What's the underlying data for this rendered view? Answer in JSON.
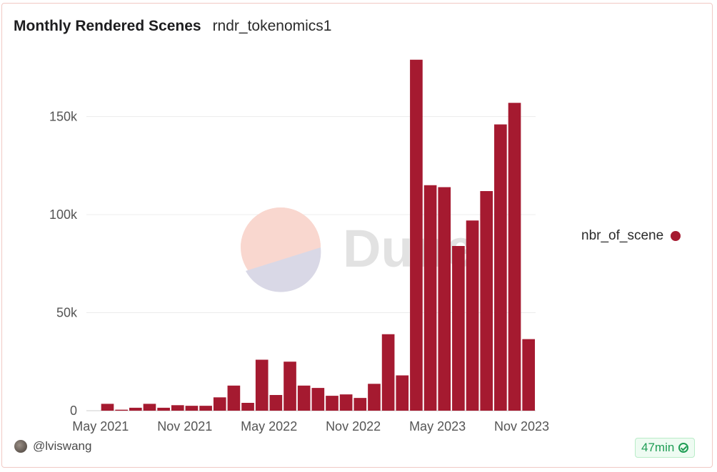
{
  "header": {
    "title": "Monthly Rendered Scenes",
    "subtitle": "rndr_tokenomics1"
  },
  "footer": {
    "username": "@lviswang",
    "refresh_badge": "47min"
  },
  "watermark": {
    "text": "Dune"
  },
  "colors": {
    "bar": "#a51a30",
    "grid": "#ececec",
    "axis_text": "#555555"
  },
  "chart_data": {
    "type": "bar",
    "title": "Monthly Rendered Scenes",
    "x": [
      "2021-05",
      "2021-06",
      "2021-07",
      "2021-08",
      "2021-09",
      "2021-10",
      "2021-11",
      "2021-12",
      "2022-01",
      "2022-02",
      "2022-03",
      "2022-04",
      "2022-05",
      "2022-06",
      "2022-07",
      "2022-08",
      "2022-09",
      "2022-10",
      "2022-11",
      "2022-12",
      "2023-01",
      "2023-02",
      "2023-03",
      "2023-04",
      "2023-05",
      "2023-06",
      "2023-07",
      "2023-08",
      "2023-09",
      "2023-10",
      "2023-11",
      "2023-12"
    ],
    "xticks": [
      "May 2021",
      "Nov 2021",
      "May 2022",
      "Nov 2022",
      "May 2023",
      "Nov 2023"
    ],
    "series": [
      {
        "name": "nbr_of_scene",
        "values": [
          0,
          3500,
          500,
          1500,
          3500,
          1500,
          2800,
          2500,
          2500,
          6800,
          12800,
          4000,
          26000,
          8000,
          25000,
          12800,
          11600,
          7600,
          8300,
          6500,
          13700,
          39000,
          18000,
          179000,
          115000,
          114000,
          84000,
          97000,
          112000,
          146000,
          157000,
          36500
        ]
      }
    ],
    "ylim": [
      0,
      180000
    ],
    "yticks": [
      0,
      50000,
      100000,
      150000
    ],
    "ytick_labels": [
      "0",
      "50k",
      "100k",
      "150k"
    ],
    "grid": true,
    "legend": "right"
  }
}
